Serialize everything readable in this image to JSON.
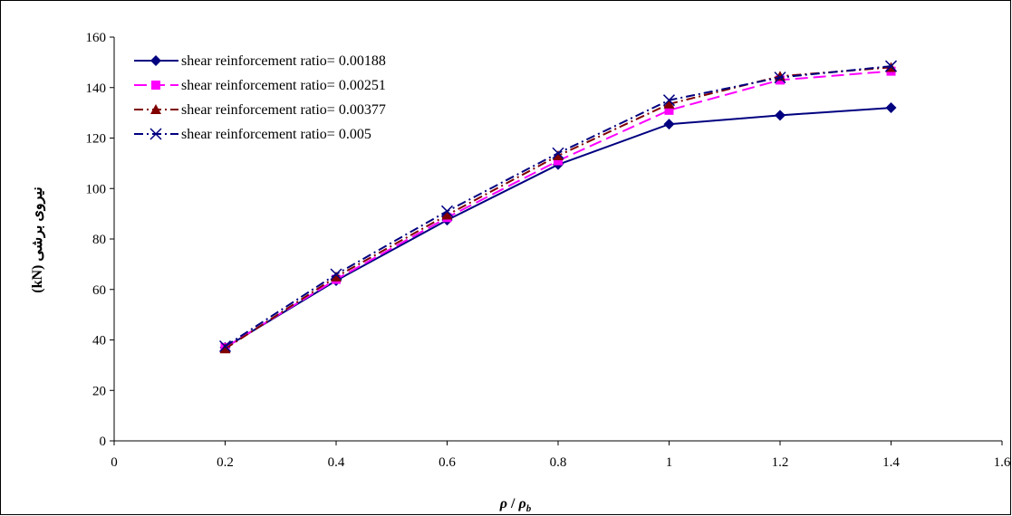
{
  "chart_data": {
    "type": "line",
    "xlabel_main": "ρ",
    "xlabel_separator": " / ",
    "xlabel_denom": "ρ",
    "xlabel_sub": "b",
    "ylabel": "نیروی برشی (kN)",
    "xlim": [
      0,
      1.6
    ],
    "ylim": [
      0,
      160
    ],
    "x_ticks": [
      {
        "value": 0,
        "label": "0"
      },
      {
        "value": 0.2,
        "label": "0.2"
      },
      {
        "value": 0.4,
        "label": "0.4"
      },
      {
        "value": 0.6,
        "label": "0.6"
      },
      {
        "value": 0.8,
        "label": "0.8"
      },
      {
        "value": 1.0,
        "label": "1"
      },
      {
        "value": 1.2,
        "label": "1.2"
      },
      {
        "value": 1.4,
        "label": "1.4"
      },
      {
        "value": 1.6,
        "label": "1.6"
      }
    ],
    "y_ticks": [
      {
        "value": 0,
        "label": "0"
      },
      {
        "value": 20,
        "label": "20"
      },
      {
        "value": 40,
        "label": "40"
      },
      {
        "value": 60,
        "label": "60"
      },
      {
        "value": 80,
        "label": "80"
      },
      {
        "value": 100,
        "label": "100"
      },
      {
        "value": 120,
        "label": "120"
      },
      {
        "value": 140,
        "label": "140"
      },
      {
        "value": 160,
        "label": "160"
      }
    ],
    "grid": false,
    "legend_position": "top-left",
    "x": [
      0.2,
      0.4,
      0.6,
      0.8,
      1.0,
      1.2,
      1.4
    ],
    "series": [
      {
        "name": "shear reinforcement ratio= 0.00188",
        "values": [
          37,
          63.5,
          87.5,
          109.5,
          125.5,
          129,
          132
        ],
        "color": "#000080",
        "dash": "solid",
        "marker": "diamond"
      },
      {
        "name": "shear reinforcement ratio= 0.00251",
        "values": [
          37,
          64,
          88.5,
          111,
          131,
          143,
          146.5
        ],
        "color": "#ff00ff",
        "dash": "long-dash",
        "marker": "square"
      },
      {
        "name": "shear reinforcement ratio= 0.00377",
        "values": [
          36.5,
          65,
          89.5,
          113,
          133.5,
          144.5,
          148
        ],
        "color": "#800000",
        "dash": "dash-dot",
        "marker": "triangle"
      },
      {
        "name": "shear reinforcement ratio= 0.005",
        "values": [
          37.5,
          66,
          91,
          114,
          135,
          144,
          148.5
        ],
        "color": "#000080",
        "dash": "dash-dot",
        "marker": "cross"
      }
    ]
  }
}
